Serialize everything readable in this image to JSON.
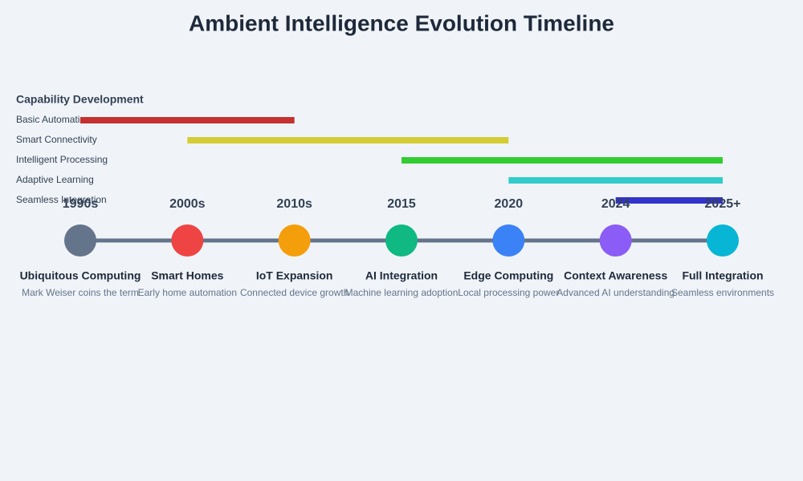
{
  "title": "Ambient Intelligence Evolution Timeline",
  "capabilities": {
    "title": "Capability Development",
    "items": [
      {
        "label": "Basic Automation",
        "color": "#c53030",
        "from": "1990s",
        "to": "2010s"
      },
      {
        "label": "Smart Connectivity",
        "color": "#d4cd36",
        "from": "2000s",
        "to": "2020"
      },
      {
        "label": "Intelligent Processing",
        "color": "#33cc33",
        "from": "2015",
        "to": "2025+"
      },
      {
        "label": "Adaptive Learning",
        "color": "#33cccc",
        "from": "2020",
        "to": "2025+"
      },
      {
        "label": "Seamless Integration",
        "color": "#3333cc",
        "from": "2024",
        "to": "2025+"
      }
    ]
  },
  "milestones": [
    {
      "year": "1990s",
      "title": "Ubiquitous Computing",
      "desc": "Mark Weiser coins the term",
      "color": "#64748b"
    },
    {
      "year": "2000s",
      "title": "Smart Homes",
      "desc": "Early home automation",
      "color": "#ef4444"
    },
    {
      "year": "2010s",
      "title": "IoT Expansion",
      "desc": "Connected device growth",
      "color": "#f59e0b"
    },
    {
      "year": "2015",
      "title": "AI Integration",
      "desc": "Machine learning adoption",
      "color": "#10b981"
    },
    {
      "year": "2020",
      "title": "Edge Computing",
      "desc": "Local processing power",
      "color": "#3b82f6"
    },
    {
      "year": "2024",
      "title": "Context Awareness",
      "desc": "Advanced AI understanding",
      "color": "#8b5cf6"
    },
    {
      "year": "2025+",
      "title": "Full Integration",
      "desc": "Seamless environments",
      "color": "#06b6d4"
    }
  ]
}
